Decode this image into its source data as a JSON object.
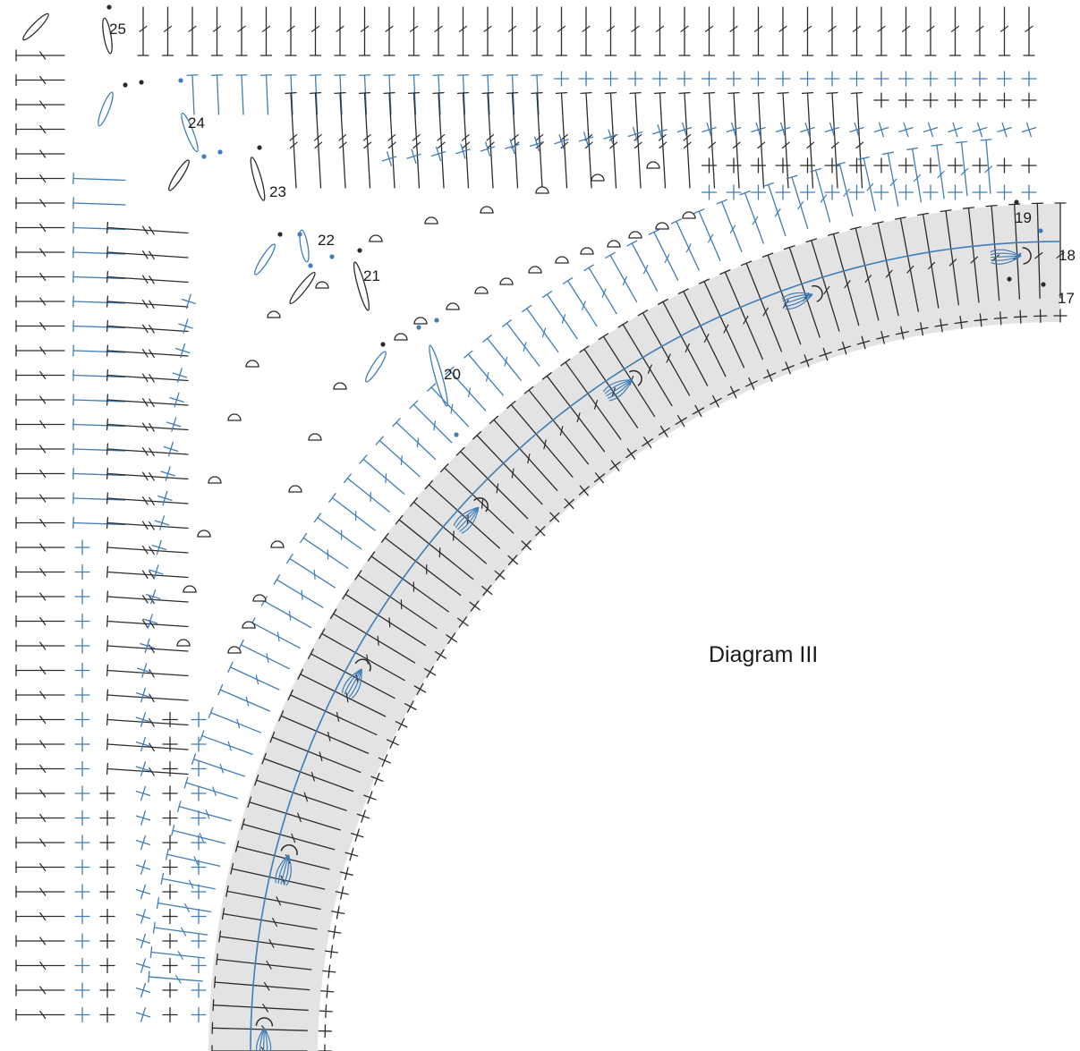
{
  "diagram": {
    "title": "Diagram III",
    "row_labels": [
      "25",
      "24",
      "23",
      "22",
      "21",
      "20",
      "19",
      "18",
      "17"
    ]
  },
  "colors": {
    "black_stitch": "#2b2b2b",
    "blue_stitch": "#3f7db8",
    "band_fill": "#e3e3e3",
    "marker_black": "#111111",
    "marker_blue": "#1f6fa8"
  },
  "symbols": [
    "slip-stitch-dot",
    "chain-oval",
    "single-crochet-cross",
    "half-double-crochet-t",
    "double-crochet-t-bar",
    "front-loop-arc",
    "cluster-stitch"
  ]
}
